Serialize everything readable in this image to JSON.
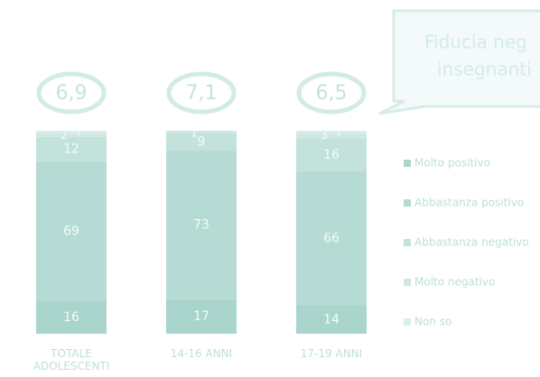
{
  "chart_data": {
    "type": "stacked_bar",
    "callout": [
      "Fiducia neg",
      "insegnanti"
    ],
    "categories": [
      "TOTALE ADOLESCENTI",
      "14-16 ANNI",
      "17-19 ANNI"
    ],
    "scores": {
      "values": [
        6.9,
        7.1,
        6.5
      ],
      "value_labels": [
        "6,9",
        "7,1",
        "6,5"
      ]
    },
    "series": [
      {
        "name": "Molto positivo",
        "color": "#a9d5cd",
        "values": [
          16,
          17,
          14
        ]
      },
      {
        "name": "Abbastanza positivo",
        "color": "#b6dbd4",
        "values": [
          69,
          73,
          66
        ]
      },
      {
        "name": "Abbastanza negativo",
        "color": "#c3e2dc",
        "values": [
          12,
          9,
          16
        ]
      },
      {
        "name": "Molto negativo",
        "color": "#cfe8e3",
        "values": [
          2,
          1,
          3
        ]
      },
      {
        "name": "Non so",
        "color": "#dbeeea",
        "values": [
          1,
          null,
          1
        ]
      }
    ],
    "ylim": [
      0,
      100
    ]
  }
}
